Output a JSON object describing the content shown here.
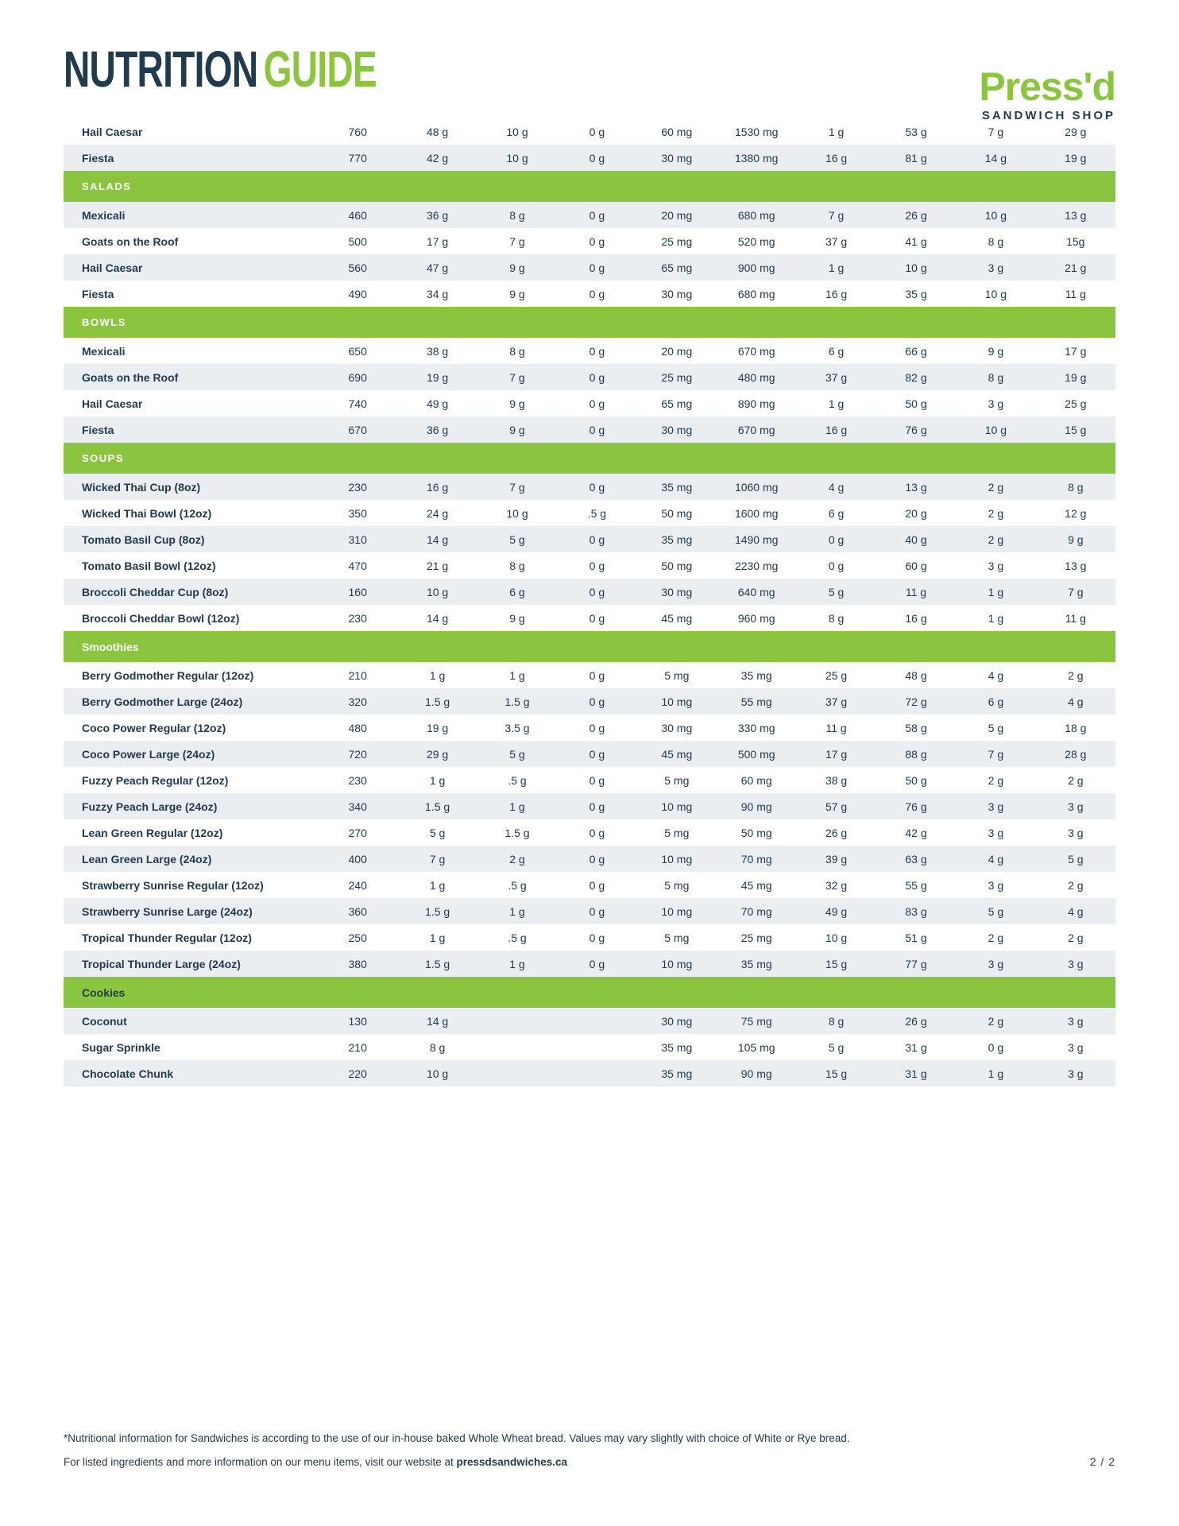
{
  "header": {
    "title_primary": "NUTRITION",
    "title_secondary": "GUIDE",
    "logo_name": "Press'd",
    "logo_tagline": "SANDWICH SHOP"
  },
  "colors": {
    "navy": "#223a4d",
    "green": "#8bc53f",
    "row_alt": "#ebeef0"
  },
  "table": {
    "rows": [
      {
        "t": "item",
        "name": "Hail Caesar",
        "v": [
          "760",
          "48 g",
          "10 g",
          "0 g",
          "60 mg",
          "1530 mg",
          "1 g",
          "53 g",
          "7 g",
          "29 g"
        ]
      },
      {
        "t": "item",
        "name": "Fiesta",
        "v": [
          "770",
          "42 g",
          "10 g",
          "0 g",
          "30 mg",
          "1380 mg",
          "16 g",
          "81 g",
          "14 g",
          "19 g"
        ]
      },
      {
        "t": "section",
        "label": "SALADS",
        "style": "caps"
      },
      {
        "t": "item",
        "name": "Mexicali",
        "v": [
          "460",
          "36 g",
          "8 g",
          "0 g",
          "20 mg",
          "680 mg",
          "7 g",
          "26 g",
          "10 g",
          "13 g"
        ]
      },
      {
        "t": "item",
        "name": "Goats on the Roof",
        "v": [
          "500",
          "17 g",
          "7 g",
          "0 g",
          "25 mg",
          "520 mg",
          "37 g",
          "41 g",
          "8 g",
          "15g"
        ]
      },
      {
        "t": "item",
        "name": "Hail Caesar",
        "v": [
          "560",
          "47 g",
          "9 g",
          "0 g",
          "65 mg",
          "900 mg",
          "1 g",
          "10 g",
          "3 g",
          "21 g"
        ]
      },
      {
        "t": "item",
        "name": "Fiesta",
        "v": [
          "490",
          "34 g",
          "9 g",
          "0 g",
          "30 mg",
          "680 mg",
          "16 g",
          "35 g",
          "10 g",
          "11 g"
        ]
      },
      {
        "t": "section",
        "label": "BOWLS",
        "style": "caps"
      },
      {
        "t": "item",
        "name": "Mexicali",
        "v": [
          "650",
          "38 g",
          "8 g",
          "0 g",
          "20 mg",
          "670 mg",
          "6 g",
          "66 g",
          "9 g",
          "17 g"
        ]
      },
      {
        "t": "item",
        "name": "Goats on the Roof",
        "v": [
          "690",
          "19 g",
          "7 g",
          "0 g",
          "25 mg",
          "480 mg",
          "37 g",
          "82 g",
          "8 g",
          "19 g"
        ]
      },
      {
        "t": "item",
        "name": "Hail Caesar",
        "v": [
          "740",
          "49 g",
          "9 g",
          "0 g",
          "65 mg",
          "890 mg",
          "1 g",
          "50 g",
          "3 g",
          "25 g"
        ]
      },
      {
        "t": "item",
        "name": "Fiesta",
        "v": [
          "670",
          "36 g",
          "9 g",
          "0 g",
          "30 mg",
          "670 mg",
          "16 g",
          "76 g",
          "10 g",
          "15 g"
        ]
      },
      {
        "t": "section",
        "label": "SOUPS",
        "style": "caps"
      },
      {
        "t": "item",
        "name": "Wicked Thai Cup (8oz)",
        "v": [
          "230",
          "16 g",
          "7 g",
          "0 g",
          "35 mg",
          "1060 mg",
          "4 g",
          "13 g",
          "2 g",
          "8 g"
        ]
      },
      {
        "t": "item",
        "name": "Wicked Thai Bowl (12oz)",
        "v": [
          "350",
          "24 g",
          "10 g",
          ".5 g",
          "50 mg",
          "1600 mg",
          "6 g",
          "20 g",
          "2 g",
          "12 g"
        ]
      },
      {
        "t": "item",
        "name": "Tomato Basil Cup (8oz)",
        "v": [
          "310",
          "14 g",
          "5 g",
          "0 g",
          "35 mg",
          "1490 mg",
          "0 g",
          "40 g",
          "2 g",
          "9 g"
        ]
      },
      {
        "t": "item",
        "name": "Tomato Basil Bowl (12oz)",
        "v": [
          "470",
          "21 g",
          "8 g",
          "0 g",
          "50 mg",
          "2230 mg",
          "0 g",
          "60 g",
          "3 g",
          "13 g"
        ]
      },
      {
        "t": "item",
        "name": "Broccoli Cheddar Cup (8oz)",
        "v": [
          "160",
          "10 g",
          "6 g",
          "0 g",
          "30 mg",
          "640 mg",
          "5 g",
          "11 g",
          "1 g",
          "7 g"
        ]
      },
      {
        "t": "item",
        "name": "Broccoli Cheddar Bowl (12oz)",
        "v": [
          "230",
          "14 g",
          "9 g",
          "0 g",
          "45 mg",
          "960 mg",
          "8 g",
          "16 g",
          "1 g",
          "11 g"
        ]
      },
      {
        "t": "section",
        "label": "Smoothies",
        "style": "plain"
      },
      {
        "t": "item",
        "name": "Berry Godmother Regular (12oz)",
        "v": [
          "210",
          "1 g",
          "1 g",
          "0 g",
          "5 mg",
          "35 mg",
          "25 g",
          "48 g",
          "4 g",
          "2 g"
        ]
      },
      {
        "t": "item",
        "name": "Berry Godmother Large (24oz)",
        "v": [
          "320",
          "1.5 g",
          "1.5 g",
          "0 g",
          "10 mg",
          "55 mg",
          "37 g",
          "72 g",
          "6 g",
          "4 g"
        ]
      },
      {
        "t": "item",
        "name": "Coco Power Regular (12oz)",
        "v": [
          "480",
          "19 g",
          "3.5 g",
          "0 g",
          "30 mg",
          "330 mg",
          "11 g",
          "58 g",
          "5 g",
          "18 g"
        ]
      },
      {
        "t": "item",
        "name": "Coco Power Large (24oz)",
        "v": [
          "720",
          "29 g",
          "5 g",
          "0 g",
          "45 mg",
          "500 mg",
          "17 g",
          "88 g",
          "7 g",
          "28 g"
        ]
      },
      {
        "t": "item",
        "name": "Fuzzy Peach Regular (12oz)",
        "v": [
          "230",
          "1 g",
          ".5 g",
          "0 g",
          "5 mg",
          "60 mg",
          "38 g",
          "50 g",
          "2 g",
          "2 g"
        ]
      },
      {
        "t": "item",
        "name": "Fuzzy Peach Large (24oz)",
        "v": [
          "340",
          "1.5 g",
          "1 g",
          "0 g",
          "10 mg",
          "90 mg",
          "57 g",
          "76 g",
          "3 g",
          "3 g"
        ]
      },
      {
        "t": "item",
        "name": "Lean Green Regular (12oz)",
        "v": [
          "270",
          "5 g",
          "1.5 g",
          "0 g",
          "5 mg",
          "50 mg",
          "26 g",
          "42 g",
          "3 g",
          "3 g"
        ]
      },
      {
        "t": "item",
        "name": "Lean Green Large (24oz)",
        "v": [
          "400",
          "7 g",
          "2 g",
          "0 g",
          "10 mg",
          "70 mg",
          "39 g",
          "63 g",
          "4 g",
          "5 g"
        ]
      },
      {
        "t": "item",
        "name": "Strawberry Sunrise Regular (12oz)",
        "v": [
          "240",
          "1 g",
          ".5 g",
          "0 g",
          "5 mg",
          "45 mg",
          "32 g",
          "55 g",
          "3 g",
          "2 g"
        ]
      },
      {
        "t": "item",
        "name": "Strawberry Sunrise Large (24oz)",
        "v": [
          "360",
          "1.5 g",
          "1 g",
          "0 g",
          "10 mg",
          "70 mg",
          "49 g",
          "83 g",
          "5 g",
          "4 g"
        ]
      },
      {
        "t": "item",
        "name": "Tropical Thunder Regular (12oz)",
        "v": [
          "250",
          "1 g",
          ".5 g",
          "0 g",
          "5 mg",
          "25 mg",
          "10 g",
          "51 g",
          "2 g",
          "2 g"
        ]
      },
      {
        "t": "item",
        "name": "Tropical Thunder Large (24oz)",
        "v": [
          "380",
          "1.5 g",
          "1 g",
          "0 g",
          "10 mg",
          "35 mg",
          "15 g",
          "77 g",
          "3 g",
          "3 g"
        ]
      },
      {
        "t": "section",
        "label": "Cookies",
        "style": "plain-dark"
      },
      {
        "t": "item",
        "name": "Coconut",
        "v": [
          "130",
          "14 g",
          "",
          "",
          "30 mg",
          "75 mg",
          "8 g",
          "26 g",
          "2 g",
          "3 g"
        ]
      },
      {
        "t": "item",
        "name": "Sugar Sprinkle",
        "v": [
          "210",
          "8 g",
          "",
          "",
          "35 mg",
          "105 mg",
          "5 g",
          "31 g",
          "0 g",
          "3 g"
        ]
      },
      {
        "t": "item",
        "name": "Chocolate Chunk",
        "v": [
          "220",
          "10 g",
          "",
          "",
          "35 mg",
          "90 mg",
          "15 g",
          "31 g",
          "1 g",
          "3 g"
        ]
      }
    ]
  },
  "footer": {
    "note": "*Nutritional information for Sandwiches is according to the use of our in-house baked Whole Wheat bread. Values may vary slightly with choice of White or Rye bread.",
    "info_text": "For listed ingredients and more information on our menu items, visit our website at ",
    "website": "pressdsandwiches.ca",
    "page_number": "2 / 2"
  }
}
